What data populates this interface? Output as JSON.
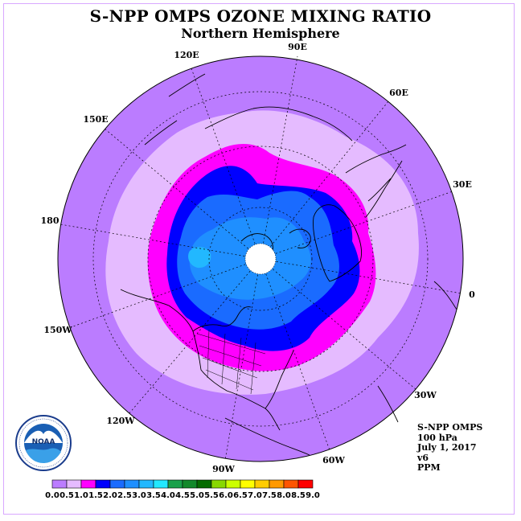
{
  "header": {
    "title": "S-NPP OMPS OZONE MIXING RATIO",
    "subtitle": "Northern Hemisphere"
  },
  "map": {
    "projection": "north-polar-stereographic",
    "longitude_labels": [
      "90E",
      "60E",
      "30E",
      "0",
      "30W",
      "60W",
      "90W",
      "120W",
      "150W",
      "180",
      "150E",
      "120E"
    ],
    "contour_levels_ppm": {
      "outer": "0.0 - 0.5",
      "ring_1": "0.5 - 1.0",
      "ring_2": "1.0 - 1.5",
      "ring_3": "1.5 - 2.0",
      "ring_4": "2.0 - 2.5",
      "core": "2.5 - 3.0"
    },
    "no_data_pole": true
  },
  "info": {
    "instrument": "S-NPP OMPS",
    "level": "100 hPa",
    "date": "July 1, 2017",
    "version": "v6",
    "units": "PPM"
  },
  "colorbar": {
    "ticks": [
      "0.0",
      "0.5",
      "1.0",
      "1.5",
      "2.0",
      "2.5",
      "3.0",
      "3.5",
      "4.0",
      "4.5",
      "5.0",
      "5.5",
      "6.0",
      "6.5",
      "7.0",
      "7.5",
      "8.0",
      "8.5",
      "9.0"
    ],
    "colors": [
      "#bb7cff",
      "#e5bbff",
      "#ff00ff",
      "#0000ff",
      "#1a6bff",
      "#1f8fff",
      "#22b8ff",
      "#22e8ff",
      "#1aa04a",
      "#12882a",
      "#056b00",
      "#88d800",
      "#ccff00",
      "#ffff00",
      "#ffcc00",
      "#ff9900",
      "#ff5500",
      "#ff0000",
      "#8b5a2b"
    ]
  },
  "logo": {
    "text": "NOAA",
    "ring_text": "NATIONAL OCEANIC AND ATMOSPHERIC ADMINISTRATION U.S. DEPARTMENT OF COMMERCE"
  }
}
